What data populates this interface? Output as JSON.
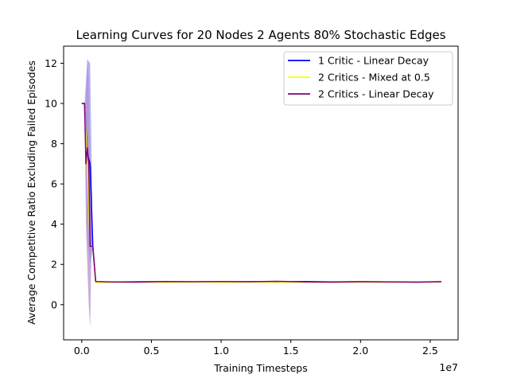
{
  "chart_data": {
    "type": "line",
    "title": "Learning Curves for 20 Nodes 2 Agents 80% Stochastic Edges",
    "xlabel": "Training Timesteps",
    "ylabel": "Average Competitive Ratio Excluding Failed Episodes",
    "x_offset_label": "1e7",
    "xlim": [
      -0.13,
      2.7
    ],
    "ylim": [
      -1.75,
      12.85
    ],
    "x_ticks": [
      0.0,
      0.5,
      1.0,
      1.5,
      2.0,
      2.5
    ],
    "x_tick_labels": [
      "0.0",
      "0.5",
      "1.0",
      "1.5",
      "2.0",
      "2.5"
    ],
    "y_ticks": [
      0,
      2,
      4,
      6,
      8,
      10,
      12
    ],
    "y_tick_labels": [
      "0",
      "2",
      "4",
      "6",
      "8",
      "10",
      "12"
    ],
    "legend_position": "top-right",
    "grid": false,
    "series": [
      {
        "name": "1 Critic - Linear Decay",
        "color": "#0000ff",
        "band_color": "#9a9af5",
        "x": [
          0.0,
          0.02,
          0.04,
          0.06,
          0.08,
          0.1,
          0.2,
          0.4,
          0.6,
          0.8,
          1.0,
          1.2,
          1.4,
          1.6,
          1.8,
          2.0,
          2.2,
          2.4,
          2.58
        ],
        "y": [
          10.0,
          10.0,
          7.5,
          7.0,
          2.8,
          1.12,
          1.12,
          1.14,
          1.14,
          1.13,
          1.13,
          1.14,
          1.13,
          1.15,
          1.13,
          1.14,
          1.13,
          1.12,
          1.14
        ],
        "lower": [
          10.0,
          10.0,
          3.3,
          2.0,
          2.8,
          1.12,
          1.12,
          1.14,
          1.14,
          1.13,
          1.13,
          1.14,
          1.13,
          1.15,
          1.13,
          1.14,
          1.13,
          1.12,
          1.14
        ],
        "upper": [
          10.0,
          10.0,
          12.2,
          12.0,
          2.8,
          1.12,
          1.12,
          1.14,
          1.14,
          1.13,
          1.13,
          1.14,
          1.13,
          1.15,
          1.13,
          1.14,
          1.13,
          1.12,
          1.14
        ]
      },
      {
        "name": "2 Critics - Mixed at 0.5",
        "color": "#ffff00",
        "band_color": "#eaeaa0",
        "x": [
          0.0,
          0.02,
          0.04,
          0.06,
          0.08,
          0.1,
          0.2,
          0.4,
          0.6,
          0.8,
          1.0,
          1.2,
          1.4,
          1.6,
          1.8,
          2.0,
          2.2,
          2.4,
          2.58
        ],
        "y": [
          10.0,
          10.0,
          7.0,
          2.9,
          2.9,
          1.1,
          1.11,
          1.12,
          1.11,
          1.12,
          1.11,
          1.12,
          1.11,
          1.12,
          1.11,
          1.12,
          1.11,
          1.12,
          1.12
        ],
        "lower": [
          10.0,
          10.0,
          7.0,
          2.9,
          2.9,
          1.1,
          1.11,
          1.12,
          1.11,
          1.12,
          1.11,
          1.12,
          1.11,
          1.12,
          1.11,
          1.12,
          1.11,
          1.12,
          1.12
        ],
        "upper": [
          10.0,
          10.0,
          7.0,
          2.9,
          2.9,
          1.1,
          1.11,
          1.12,
          1.11,
          1.12,
          1.11,
          1.12,
          1.11,
          1.12,
          1.11,
          1.12,
          1.11,
          1.12,
          1.12
        ]
      },
      {
        "name": "2 Critics - Linear Decay",
        "color": "#800080",
        "band_color": "#b690d0",
        "x": [
          0.0,
          0.02,
          0.03,
          0.04,
          0.05,
          0.06,
          0.07,
          0.08,
          0.1,
          0.2,
          0.4,
          0.6,
          0.8,
          1.0,
          1.2,
          1.4,
          1.6,
          1.8,
          2.0,
          2.2,
          2.4,
          2.58
        ],
        "y": [
          10.0,
          10.0,
          7.0,
          7.8,
          7.0,
          2.9,
          2.9,
          2.9,
          1.15,
          1.13,
          1.12,
          1.15,
          1.14,
          1.15,
          1.14,
          1.16,
          1.13,
          1.12,
          1.14,
          1.13,
          1.12,
          1.14
        ],
        "lower": [
          10.0,
          10.0,
          4.0,
          2.0,
          0.0,
          -1.15,
          2.9,
          2.9,
          1.15,
          1.13,
          1.12,
          1.15,
          1.14,
          1.15,
          1.14,
          1.16,
          1.13,
          1.12,
          1.14,
          1.13,
          1.12,
          1.14
        ],
        "upper": [
          10.0,
          10.0,
          10.0,
          12.2,
          11.2,
          6.9,
          6.85,
          2.9,
          1.15,
          1.13,
          1.12,
          1.15,
          1.14,
          1.15,
          1.14,
          1.16,
          1.13,
          1.12,
          1.14,
          1.13,
          1.12,
          1.14
        ]
      }
    ]
  }
}
